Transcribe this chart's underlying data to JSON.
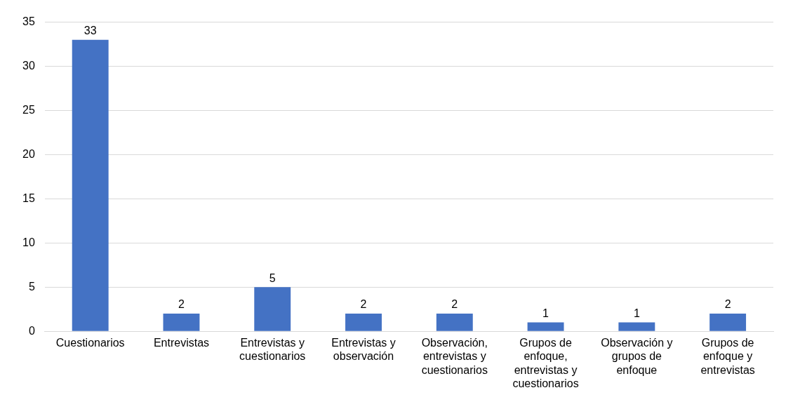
{
  "chart_data": {
    "type": "bar",
    "categories": [
      "Cuestionarios",
      "Entrevistas",
      "Entrevistas y cuestionarios",
      "Entrevistas y observación",
      "Observación, entrevistas y cuestionarios",
      "Grupos de enfoque, entrevistas y cuestionarios",
      "Observación y grupos de enfoque",
      "Grupos de enfoque y entrevistas"
    ],
    "values": [
      33,
      2,
      5,
      2,
      2,
      1,
      1,
      2
    ],
    "color": "#4472c4",
    "ylim": [
      0,
      35
    ],
    "yticks": [
      0,
      5,
      10,
      15,
      20,
      25,
      30,
      35
    ],
    "grid": "y",
    "data_labels": true
  }
}
